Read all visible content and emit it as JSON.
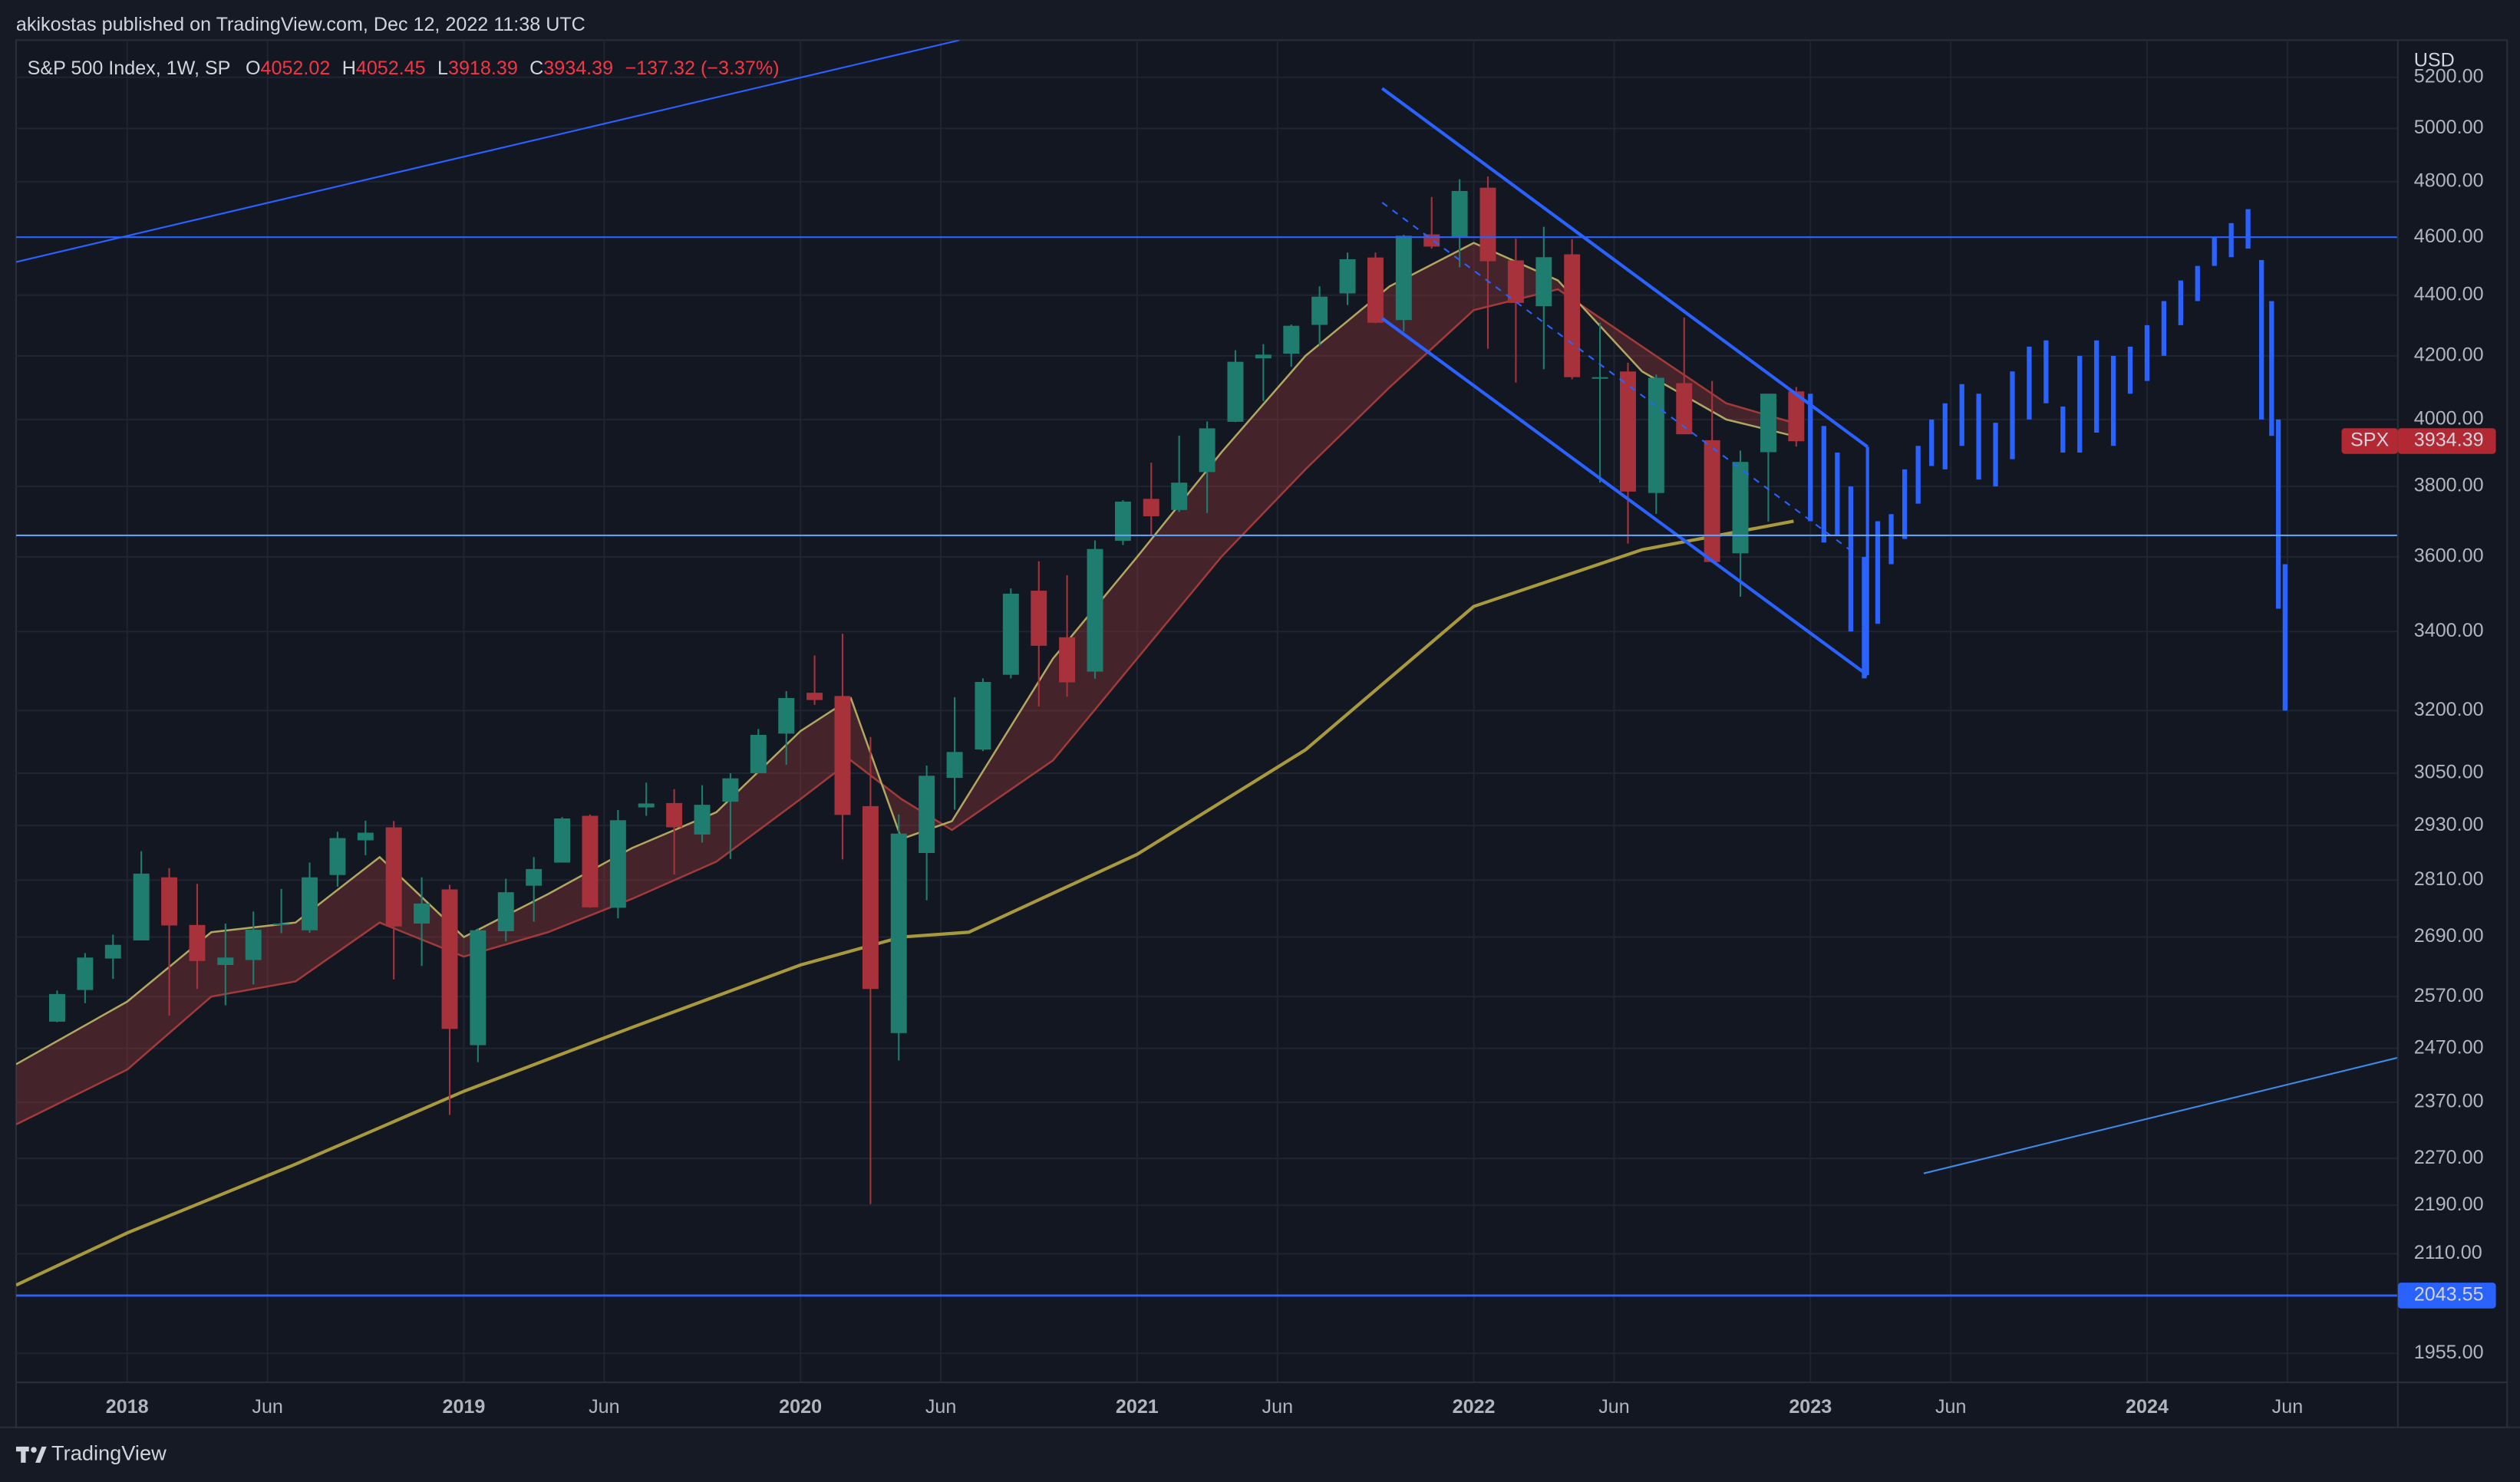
{
  "header": {
    "text": "akikostas published on TradingView.com, Dec 12, 2022 11:38 UTC"
  },
  "footer": {
    "brand": "TradingView"
  },
  "chart_data": {
    "type": "candlestick",
    "legend": {
      "symbol": "S&P 500 Index, 1W, SP",
      "open_label": "O",
      "open": 4052.02,
      "high_label": "H",
      "high": 4052.45,
      "low_label": "L",
      "low": 3918.39,
      "close_label": "C",
      "close": 3934.39,
      "change": "−137.32 (−3.37%)"
    },
    "currency": "USD",
    "last_label": "SPX",
    "last_color": "#b22833",
    "log_scale": true,
    "grid": true,
    "xlim": [
      2017.67,
      2024.745
    ],
    "ylim": [
      1912,
      5350
    ],
    "xticks": [
      2018,
      {
        "value": 2018.417,
        "label": "Jun"
      },
      2019,
      {
        "value": 2019.417,
        "label": "Jun"
      },
      2020,
      {
        "value": 2020.417,
        "label": "Jun"
      },
      2021,
      {
        "value": 2021.417,
        "label": "Jun"
      },
      2022,
      {
        "value": 2022.417,
        "label": "Jun"
      },
      2023,
      {
        "value": 2023.417,
        "label": "Jun"
      },
      2024,
      {
        "value": 2024.417,
        "label": "Jun"
      }
    ],
    "yticks": [
      {
        "value": 5200,
        "label": "5200.00"
      },
      {
        "value": 5000,
        "label": "5000.00"
      },
      {
        "value": 4800,
        "label": "4800.00"
      },
      {
        "value": 4600,
        "label": "4600.00"
      },
      {
        "value": 4400,
        "label": "4400.00"
      },
      {
        "value": 4200,
        "label": "4200.00"
      },
      {
        "value": 4000,
        "label": "4000.00"
      },
      {
        "value": 3800,
        "label": "3800.00"
      },
      {
        "value": 3600,
        "label": "3600.00"
      },
      {
        "value": 3400,
        "label": "3400.00"
      },
      {
        "value": 3200,
        "label": "3200.00"
      },
      {
        "value": 3050,
        "label": "3050.00"
      },
      {
        "value": 2930,
        "label": "2930.00"
      },
      {
        "value": 2810,
        "label": "2810.00"
      },
      {
        "value": 2690,
        "label": "2690.00"
      },
      {
        "value": 2570,
        "label": "2570.00"
      },
      {
        "value": 2470,
        "label": "2470.00"
      },
      {
        "value": 2370,
        "label": "2370.00"
      },
      {
        "value": 2270,
        "label": "2270.00"
      },
      {
        "value": 2190,
        "label": "2190.00"
      },
      {
        "value": 2110,
        "label": "2110.00"
      },
      {
        "value": 1955,
        "label": "1955.00"
      }
    ],
    "up_color": "#1f7d70",
    "down_color": "#a8323c",
    "candles": {
      "x": [
        2017.792,
        2017.875,
        2017.958,
        2018.042,
        2018.125,
        2018.208,
        2018.292,
        2018.375,
        2018.458,
        2018.542,
        2018.625,
        2018.708,
        2018.792,
        2018.875,
        2018.958,
        2019.042,
        2019.125,
        2019.208,
        2019.292,
        2019.375,
        2019.458,
        2019.542,
        2019.625,
        2019.708,
        2019.792,
        2019.875,
        2019.958,
        2020.042,
        2020.125,
        2020.208,
        2020.292,
        2020.375,
        2020.458,
        2020.542,
        2020.625,
        2020.708,
        2020.792,
        2020.875,
        2020.958,
        2021.042,
        2021.125,
        2021.208,
        2021.292,
        2021.375,
        2021.458,
        2021.542,
        2021.625,
        2021.708,
        2021.792,
        2021.875,
        2021.958,
        2022.042,
        2022.125,
        2022.208,
        2022.292,
        2022.375,
        2022.458,
        2022.542,
        2022.625,
        2022.708,
        2022.792,
        2022.875,
        2022.958
      ],
      "open": [
        2521,
        2583,
        2646,
        2683,
        2816,
        2715,
        2633,
        2643,
        2718,
        2704,
        2821,
        2897,
        2926,
        2718,
        2790,
        2476,
        2702,
        2798,
        2848,
        2952,
        2751,
        2971,
        2981,
        2910,
        2984,
        3050,
        3144,
        3244,
        3236,
        2974,
        2499,
        2869,
        3039,
        3106,
        3289,
        3508,
        3385,
        3297,
        3645,
        3764,
        3732,
        3842,
        3993,
        4192,
        4207,
        4301,
        4406,
        4529,
        4317,
        4610,
        4602,
        4778,
        4519,
        4363,
        4540,
        4131,
        4150,
        3781,
        4113,
        3937,
        3610,
        3901,
        4087
      ],
      "high": [
        2582,
        2657,
        2695,
        2873,
        2836,
        2802,
        2718,
        2743,
        2791,
        2848,
        2916,
        2941,
        2940,
        2816,
        2800,
        2708,
        2813,
        2860,
        2949,
        2955,
        2965,
        3028,
        3013,
        3022,
        3050,
        3155,
        3248,
        3338,
        3394,
        3136,
        2955,
        3068,
        3233,
        3280,
        3514,
        3588,
        3550,
        3646,
        3760,
        3870,
        3951,
        3994,
        4218,
        4238,
        4302,
        4430,
        4546,
        4546,
        4608,
        4744,
        4809,
        4819,
        4595,
        4637,
        4593,
        4308,
        4178,
        4140,
        4325,
        4120,
        3906,
        4080,
        4101
      ],
      "low": [
        2520,
        2557,
        2605,
        2683,
        2533,
        2585,
        2553,
        2594,
        2698,
        2699,
        2796,
        2864,
        2604,
        2631,
        2347,
        2444,
        2681,
        2722,
        2848,
        2751,
        2729,
        2952,
        2822,
        2892,
        2856,
        3050,
        3070,
        3214,
        2855,
        2192,
        2447,
        2767,
        2966,
        3102,
        3280,
        3210,
        3234,
        3279,
        3633,
        3662,
        3726,
        3723,
        3992,
        4057,
        4165,
        4233,
        4367,
        4306,
        4279,
        4560,
        4495,
        4223,
        4115,
        4157,
        4125,
        3811,
        3637,
        3721,
        3955,
        3584,
        3492,
        3699,
        3918
      ],
      "close": [
        2575,
        2648,
        2674,
        2824,
        2714,
        2641,
        2648,
        2705,
        2718,
        2816,
        2902,
        2914,
        2712,
        2760,
        2507,
        2704,
        2784,
        2834,
        2946,
        2752,
        2942,
        2980,
        2926,
        2977,
        3038,
        3141,
        3231,
        3226,
        2954,
        2585,
        2912,
        3044,
        3100,
        3271,
        3500,
        3363,
        3270,
        3622,
        3756,
        3714,
        3811,
        3973,
        4181,
        4204,
        4298,
        4395,
        4523,
        4308,
        4605,
        4567,
        4766,
        4516,
        4374,
        4530,
        4132,
        4132,
        3785,
        4130,
        3955,
        3586,
        3872,
        4080,
        3934
      ]
    },
    "ema_fast": {
      "color": "#b0a860",
      "x": [
        2017.67,
        2018.0,
        2018.25,
        2018.5,
        2018.75,
        2019.0,
        2019.25,
        2019.5,
        2019.75,
        2020.0,
        2020.15,
        2020.3,
        2020.45,
        2020.75,
        2021.0,
        2021.25,
        2021.5,
        2021.75,
        2022.0,
        2022.25,
        2022.5,
        2022.75,
        2022.95
      ],
      "values": [
        2440,
        2560,
        2700,
        2720,
        2860,
        2690,
        2780,
        2880,
        2960,
        3150,
        3230,
        2900,
        2940,
        3330,
        3600,
        3900,
        4200,
        4430,
        4580,
        4450,
        4150,
        4000,
        3950
      ]
    },
    "ema_slow": {
      "color": "#a33a3a",
      "x": [
        2017.67,
        2018.0,
        2018.25,
        2018.5,
        2018.75,
        2019.0,
        2019.25,
        2019.5,
        2019.75,
        2020.0,
        2020.15,
        2020.3,
        2020.45,
        2020.75,
        2021.0,
        2021.25,
        2021.5,
        2021.75,
        2022.0,
        2022.25,
        2022.5,
        2022.75,
        2022.95
      ],
      "values": [
        2330,
        2430,
        2570,
        2600,
        2720,
        2650,
        2700,
        2770,
        2850,
        2990,
        3080,
        2990,
        2920,
        3080,
        3330,
        3600,
        3850,
        4100,
        4350,
        4420,
        4230,
        4050,
        3990
      ]
    },
    "ma200": {
      "color": "#a89a3c",
      "x": [
        2017.67,
        2018.0,
        2018.5,
        2019.0,
        2019.5,
        2020.0,
        2020.3,
        2020.5,
        2021.0,
        2021.5,
        2022.0,
        2022.5,
        2022.95
      ],
      "values": [
        2060,
        2144,
        2260,
        2390,
        2510,
        2633,
        2690,
        2700,
        2866,
        3105,
        3466,
        3620,
        3700
      ]
    },
    "projection": {
      "color": "#2962ff",
      "x": [
        2023.0,
        2023.04,
        2023.08,
        2023.12,
        2023.16,
        2023.2,
        2023.24,
        2023.28,
        2023.32,
        2023.36,
        2023.4,
        2023.45,
        2023.5,
        2023.55,
        2023.6,
        2023.65,
        2023.7,
        2023.75,
        2023.8,
        2023.85,
        2023.9,
        2023.95,
        2024.0,
        2024.05,
        2024.1,
        2024.15,
        2024.2,
        2024.25,
        2024.3,
        2024.34,
        2024.37,
        2024.39,
        2024.41
      ],
      "high": [
        4080,
        3980,
        3900,
        3800,
        3600,
        3700,
        3720,
        3850,
        3920,
        4000,
        4050,
        4110,
        4080,
        3990,
        4150,
        4230,
        4250,
        4040,
        4200,
        4250,
        4200,
        4230,
        4300,
        4380,
        4450,
        4500,
        4600,
        4650,
        4700,
        4520,
        4380,
        4000,
        3580
      ],
      "low": [
        3700,
        3640,
        3660,
        3400,
        3280,
        3420,
        3580,
        3650,
        3750,
        3860,
        3850,
        3920,
        3820,
        3800,
        3880,
        4000,
        4050,
        3900,
        3900,
        3960,
        3920,
        4080,
        4120,
        4200,
        4300,
        4380,
        4500,
        4530,
        4560,
        4000,
        3950,
        3460,
        3200
      ]
    },
    "levels": [
      {
        "value": 4600,
        "color": "#2962ff"
      },
      {
        "value": 3660,
        "color": "#5ea1f2"
      },
      {
        "value": 2043.55,
        "color": "#2962ff",
        "labeled": true
      }
    ]
  }
}
